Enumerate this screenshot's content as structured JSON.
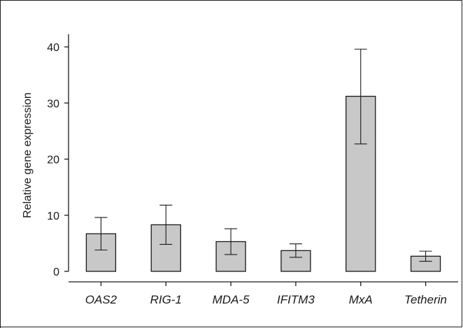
{
  "chart_data": {
    "type": "bar",
    "title": "",
    "xlabel": "",
    "ylabel": "Relative gene expression",
    "ylim": [
      0,
      42
    ],
    "yticks": [
      0,
      10,
      20,
      30,
      40
    ],
    "categories": [
      "OAS2",
      "RIG-1",
      "MDA-5",
      "IFITM3",
      "MxA",
      "Tetherin"
    ],
    "values": [
      6.7,
      8.3,
      5.3,
      3.7,
      31.2,
      2.7
    ],
    "error_low": [
      3.8,
      4.8,
      3.0,
      2.5,
      22.7,
      1.8
    ],
    "error_high": [
      9.6,
      11.8,
      7.6,
      4.9,
      39.6,
      3.6
    ],
    "bar_color": "#c8c8c8",
    "edge_color": "#1a1a1a",
    "grid": false,
    "legend": "none"
  }
}
